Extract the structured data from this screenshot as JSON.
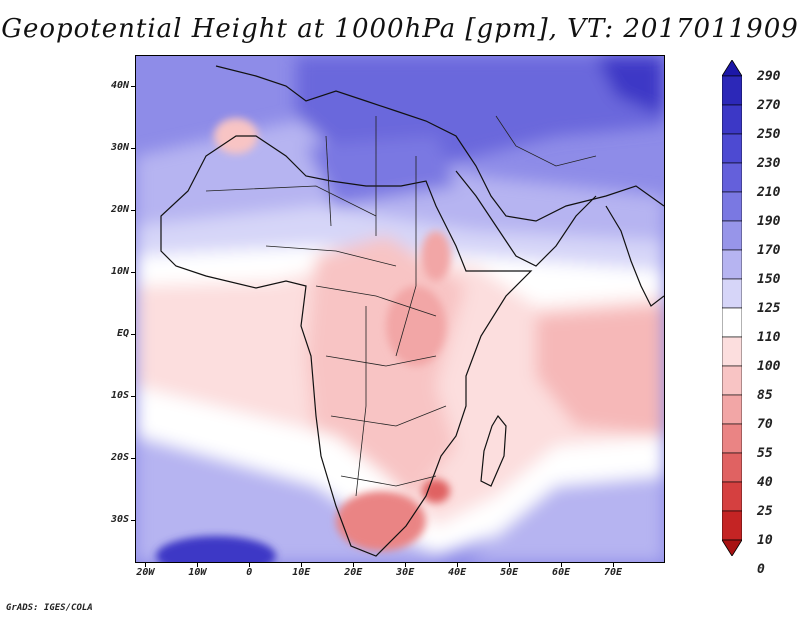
{
  "title": "Geopotential Height at 1000hPa [gpm], VT: 2017011909",
  "footer": "GrADS: IGES/COLA",
  "lat_labels": [
    "40N",
    "30N",
    "20N",
    "10N",
    "EQ",
    "10S",
    "20S",
    "30S"
  ],
  "lat_values": [
    40,
    30,
    20,
    10,
    0,
    -10,
    -20,
    -30
  ],
  "lon_labels": [
    "20W",
    "10W",
    "0",
    "10E",
    "20E",
    "30E",
    "40E",
    "50E",
    "60E",
    "70E"
  ],
  "lon_values": [
    -20,
    -10,
    0,
    10,
    20,
    30,
    40,
    50,
    60,
    70
  ],
  "extent": {
    "lon_min": -22,
    "lon_max": 80,
    "lat_min": -37,
    "lat_max": 45
  },
  "colorbar": {
    "levels": [
      "290",
      "270",
      "250",
      "230",
      "210",
      "190",
      "170",
      "150",
      "125",
      "110",
      "100",
      "85",
      "70",
      "55",
      "40",
      "25",
      "10",
      "0"
    ],
    "colors": [
      "#1c17a8",
      "#2c28b8",
      "#3c38c6",
      "#4d4ad2",
      "#6460db",
      "#7a78e2",
      "#9795e9",
      "#b6b4f1",
      "#d6d5f8",
      "#ffffff",
      "#fcdede",
      "#f8c4c4",
      "#f2a6a6",
      "#ea8484",
      "#e06262",
      "#d54040",
      "#c42424",
      "#a81212"
    ]
  },
  "colors": {
    "axis": "#000000",
    "coast": "#111111"
  }
}
